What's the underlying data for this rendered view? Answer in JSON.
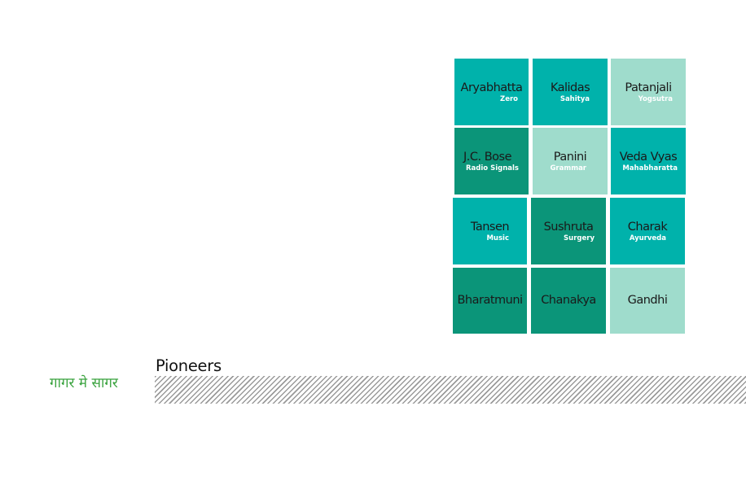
{
  "tiles": [
    {
      "name": "Aryabhatta",
      "subtitle": "Zero",
      "color": "#00b2ab"
    },
    {
      "name": "Kalidas",
      "subtitle": "Sahitya",
      "color": "#00b2ab"
    },
    {
      "name": "Patanjali",
      "subtitle": "Yogsutra",
      "color": "#9fdccc"
    },
    {
      "name": "J.C. Bose",
      "subtitle": "Radio Signals",
      "color": "#0b9579"
    },
    {
      "name": "Panini",
      "subtitle": "Grammar",
      "color": "#9fdccc"
    },
    {
      "name": "Veda Vyas",
      "subtitle": "Mahabharatta",
      "color": "#00b2ab"
    },
    {
      "name": "Tansen",
      "subtitle": "Music",
      "color": "#00b2ab"
    },
    {
      "name": "Sushruta",
      "subtitle": "Surgery",
      "color": "#0b9579"
    },
    {
      "name": "Charak",
      "subtitle": "Ayurveda",
      "color": "#00b2ab"
    },
    {
      "name": "Bharatmuni",
      "subtitle": "",
      "color": "#0b9579"
    },
    {
      "name": "Chanakya",
      "subtitle": "",
      "color": "#0b9579"
    },
    {
      "name": "Gandhi",
      "subtitle": "",
      "color": "#9fdccc"
    }
  ],
  "footer": {
    "tagline": "गागर मे सागर",
    "title": "Pioneers",
    "tagline_color": "#3aa33f"
  }
}
